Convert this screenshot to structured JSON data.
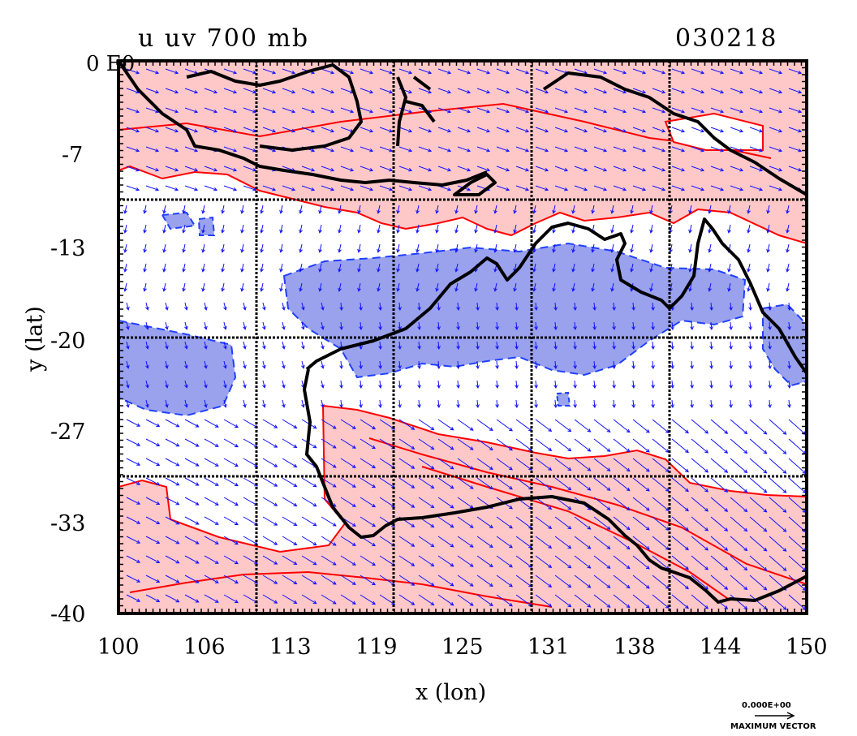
{
  "title": "u uv 700 mb",
  "date_code": "030218",
  "corner_label": "0 E0",
  "x_axis": {
    "label": "x (lon)",
    "ticks": [
      "100",
      "106",
      "113",
      "119",
      "125",
      "131",
      "138",
      "144",
      "150"
    ]
  },
  "y_axis": {
    "label": "y (lat)",
    "ticks": [
      "-7",
      "-13",
      "-20",
      "-27",
      "-33",
      "-40"
    ]
  },
  "legend": {
    "value": "0.000E+00",
    "caption": "MAXIMUM VECTOR"
  },
  "colors": {
    "positive_fill": "#ffc8c8",
    "positive_contour": "#ff0000",
    "negative_fill": "#9aa2ee",
    "negative_contour": "#2040ff",
    "vectors": "#1010ff",
    "coast": "#000000"
  }
}
